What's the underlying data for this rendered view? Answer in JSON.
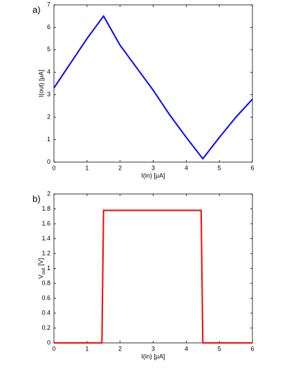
{
  "chart_data": [
    {
      "type": "line",
      "panel_label": "a)",
      "xlabel": "I(in) [μA]",
      "ylabel": "I(out) [μA]",
      "xlim": [
        0,
        6
      ],
      "ylim": [
        0,
        7
      ],
      "xticks": [
        0,
        1,
        2,
        3,
        4,
        5,
        6
      ],
      "yticks": [
        0,
        1,
        2,
        3,
        4,
        5,
        6,
        7
      ],
      "series": [
        {
          "color": "#0000ff",
          "x": [
            0,
            0.5,
            1,
            1.5,
            2,
            2.5,
            3,
            3.5,
            4,
            4.5,
            5,
            5.5,
            6
          ],
          "values": [
            3.3,
            4.4,
            5.5,
            6.5,
            5.2,
            4.2,
            3.2,
            2.1,
            1.1,
            0.15,
            1.1,
            2.0,
            2.8
          ]
        }
      ]
    },
    {
      "type": "line",
      "panel_label": "b)",
      "xlabel": "I(in) [μA]",
      "ylabel_parts": [
        "V",
        "out",
        "[V]"
      ],
      "xlim": [
        0,
        6
      ],
      "ylim": [
        0,
        2
      ],
      "xticks": [
        0,
        1,
        2,
        3,
        4,
        5,
        6
      ],
      "yticks": [
        0,
        0.2,
        0.4,
        0.6,
        0.8,
        1,
        1.2,
        1.4,
        1.6,
        1.8,
        2
      ],
      "series": [
        {
          "color": "#ff0000",
          "x": [
            0,
            1.45,
            1.5,
            4.45,
            4.5,
            6
          ],
          "values": [
            0,
            0,
            1.78,
            1.78,
            0,
            0
          ]
        }
      ]
    }
  ]
}
